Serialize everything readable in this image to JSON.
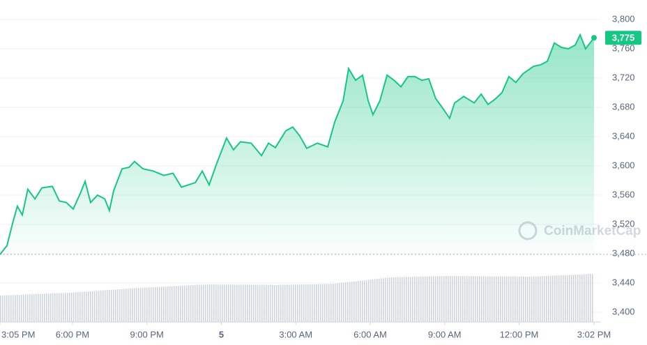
{
  "chart_data": {
    "type": "area",
    "watermark": "CoinMarketCap",
    "color": "#16c784",
    "current_price": {
      "value": 3775,
      "label": "3,775"
    },
    "x": [
      15.08,
      15.36,
      15.59,
      15.78,
      15.98,
      16.2,
      16.49,
      16.77,
      17.19,
      17.47,
      17.75,
      18.03,
      18.31,
      18.51,
      18.73,
      19.01,
      19.3,
      19.49,
      19.66,
      20.0,
      20.28,
      20.5,
      20.84,
      21.26,
      21.68,
      22.05,
      22.39,
      22.67,
      22.95,
      23.23,
      23.51,
      23.79,
      24.21,
      24.49,
      24.77,
      25.2,
      25.62,
      25.9,
      26.18,
      26.6,
      26.88,
      27.16,
      27.44,
      27.87,
      28.29,
      28.57,
      28.91,
      29.13,
      29.41,
      29.69,
      29.92,
      30.11,
      30.39,
      30.68,
      30.96,
      31.24,
      31.52,
      31.8,
      32.08,
      32.36,
      32.64,
      32.92,
      33.2,
      33.4,
      33.77,
      34.19,
      34.47,
      34.75,
      35.03,
      35.31,
      35.59,
      35.87,
      36.16,
      36.58,
      36.86,
      37.14,
      37.42,
      37.7,
      37.98,
      38.26,
      38.46,
      38.68,
      39.02
    ],
    "values": [
      3479,
      3491,
      3522,
      3545,
      3533,
      3568,
      3555,
      3570,
      3572,
      3552,
      3550,
      3541,
      3562,
      3579,
      3550,
      3560,
      3555,
      3539,
      3566,
      3596,
      3598,
      3606,
      3596,
      3593,
      3587,
      3590,
      3571,
      3574,
      3577,
      3593,
      3574,
      3601,
      3638,
      3622,
      3633,
      3631,
      3614,
      3631,
      3625,
      3648,
      3653,
      3641,
      3624,
      3631,
      3626,
      3660,
      3689,
      3733,
      3717,
      3724,
      3689,
      3670,
      3689,
      3724,
      3717,
      3708,
      3722,
      3722,
      3717,
      3719,
      3692,
      3679,
      3665,
      3686,
      3695,
      3686,
      3698,
      3684,
      3691,
      3700,
      3722,
      3714,
      3726,
      3736,
      3738,
      3743,
      3768,
      3762,
      3760,
      3765,
      3779,
      3760,
      3775
    ],
    "xlim": [
      15.08,
      39.02
    ],
    "xticks": [
      {
        "value": 15.08,
        "label": "3:05 PM"
      },
      {
        "value": 18,
        "label": "6:00 PM"
      },
      {
        "value": 21,
        "label": "9:00 PM"
      },
      {
        "value": 24,
        "label": "5"
      },
      {
        "value": 27,
        "label": "3:00 AM"
      },
      {
        "value": 30,
        "label": "6:00 AM"
      },
      {
        "value": 33,
        "label": "9:00 AM"
      },
      {
        "value": 36,
        "label": "12:00 PM"
      },
      {
        "value": 39.02,
        "label": "3:02 PM"
      }
    ],
    "ylim": [
      3380,
      3820
    ],
    "yticks": [
      {
        "value": 3400,
        "label": "3,400"
      },
      {
        "value": 3440,
        "label": "3,440"
      },
      {
        "value": 3480,
        "label": "3,480"
      },
      {
        "value": 3520,
        "label": "3,520"
      },
      {
        "value": 3560,
        "label": "3,560"
      },
      {
        "value": 3600,
        "label": "3,600"
      },
      {
        "value": 3640,
        "label": "3,640"
      },
      {
        "value": 3680,
        "label": "3,680"
      },
      {
        "value": 3720,
        "label": "3,720"
      },
      {
        "value": 3760,
        "label": "3,760"
      },
      {
        "value": 3800,
        "label": "3,800"
      }
    ],
    "grid": true
  }
}
